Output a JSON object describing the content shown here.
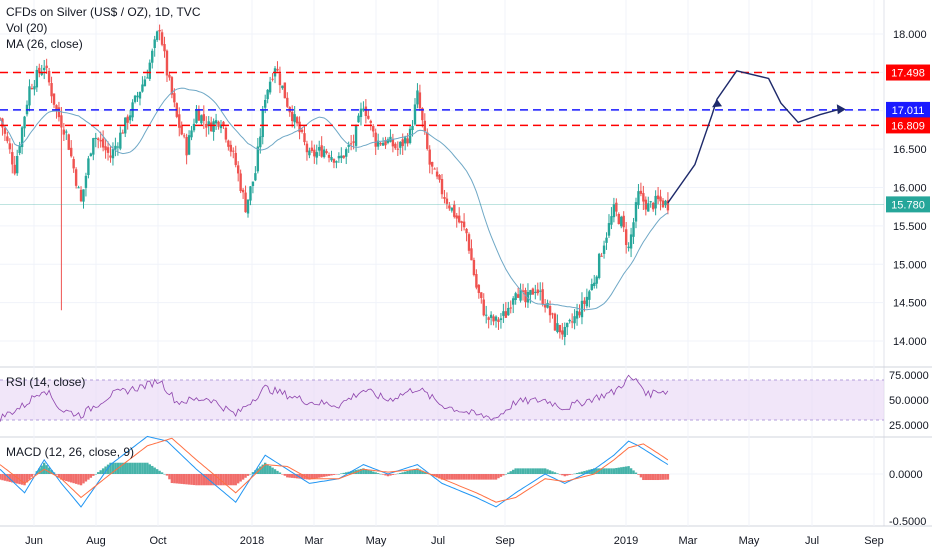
{
  "legend": {
    "main": "CFDs on Silver (US$ / OZ), 1D, TVC",
    "volume": "Vol (20)",
    "ma": "MA (26, close)",
    "rsi": "RSI (14, close)",
    "macd": "MACD (12, 26, close, 9)"
  },
  "colors": {
    "up": "#26a69a",
    "down": "#ef5350",
    "ma": "#6fa8c6",
    "rsi_line": "#8e44ad",
    "rsi_band": "#e8d5f5",
    "macd_line": "#2196f3",
    "signal_line": "#ff7043",
    "resistance": "#ff0000",
    "support_mid": "#1a1aff",
    "projection": "#1e2a6b",
    "current_price": "#26a69a"
  },
  "chart_data": [
    {
      "type": "candlestick",
      "title": "CFDs on Silver (US$ / OZ), 1D, TVC",
      "x_ticks": [
        "Jun",
        "Aug",
        "Oct",
        "2018",
        "Mar",
        "May",
        "Jul",
        "Sep",
        "2019",
        "Mar",
        "May",
        "Jul",
        "Sep"
      ],
      "y_ticks": [
        "18.000",
        "17.500",
        "17.000",
        "16.500",
        "16.000",
        "15.500",
        "15.000",
        "14.500",
        "14.000"
      ],
      "ylim": [
        13.7,
        18.3
      ],
      "price_labels": [
        {
          "label": "17.498",
          "value": 17.498,
          "style": "resistance"
        },
        {
          "label": "17.011",
          "value": 17.011,
          "style": "support_mid"
        },
        {
          "label": "16.809",
          "value": 16.809,
          "style": "resistance"
        },
        {
          "label": "15.780",
          "value": 15.78,
          "style": "current_price"
        }
      ],
      "close_path": [
        [
          0,
          16.9
        ],
        [
          6,
          16.25
        ],
        [
          12,
          17.3
        ],
        [
          18,
          17.6
        ],
        [
          23,
          17.0
        ],
        [
          27,
          16.7
        ],
        [
          33,
          15.8
        ],
        [
          38,
          16.7
        ],
        [
          45,
          16.4
        ],
        [
          52,
          16.9
        ],
        [
          60,
          17.5
        ],
        [
          65,
          18.1
        ],
        [
          68,
          17.5
        ],
        [
          72,
          16.9
        ],
        [
          76,
          16.5
        ],
        [
          80,
          17.0
        ],
        [
          85,
          16.8
        ],
        [
          90,
          16.9
        ],
        [
          96,
          16.3
        ],
        [
          100,
          15.75
        ],
        [
          104,
          16.2
        ],
        [
          108,
          17.2
        ],
        [
          112,
          17.6
        ],
        [
          117,
          17.1
        ],
        [
          121,
          16.8
        ],
        [
          126,
          16.4
        ],
        [
          132,
          16.5
        ],
        [
          138,
          16.35
        ],
        [
          144,
          16.6
        ],
        [
          148,
          17.1
        ],
        [
          153,
          16.6
        ],
        [
          158,
          16.6
        ],
        [
          162,
          16.5
        ],
        [
          167,
          16.7
        ],
        [
          170,
          17.2
        ],
        [
          175,
          16.3
        ],
        [
          180,
          15.95
        ],
        [
          186,
          15.6
        ],
        [
          190,
          15.4
        ],
        [
          194,
          14.7
        ],
        [
          198,
          14.3
        ],
        [
          202,
          14.25
        ],
        [
          206,
          14.35
        ],
        [
          210,
          14.7
        ],
        [
          214,
          14.5
        ],
        [
          218,
          14.7
        ],
        [
          222,
          14.5
        ],
        [
          226,
          14.2
        ],
        [
          230,
          14.1
        ],
        [
          234,
          14.3
        ],
        [
          238,
          14.5
        ],
        [
          242,
          14.8
        ],
        [
          246,
          15.3
        ],
        [
          250,
          15.7
        ],
        [
          253,
          15.55
        ],
        [
          256,
          15.2
        ],
        [
          260,
          15.9
        ],
        [
          264,
          15.75
        ],
        [
          268,
          15.82
        ],
        [
          272,
          15.78
        ]
      ],
      "spike_low": {
        "t": 25,
        "value": 14.4
      },
      "resistance_levels": [
        17.498,
        16.809
      ],
      "mid_level": 17.011,
      "current_price": 15.78,
      "projection_path": [
        [
          272,
          15.8
        ],
        [
          283,
          16.3
        ],
        [
          290,
          16.95
        ],
        [
          292,
          17.15
        ],
        [
          300,
          17.52
        ],
        [
          313,
          17.42
        ],
        [
          318,
          17.1
        ],
        [
          325,
          16.85
        ],
        [
          334,
          16.95
        ],
        [
          342,
          17.02
        ]
      ]
    },
    {
      "type": "line",
      "title": "RSI (14, close)",
      "y_ticks": [
        "75.0000",
        "50.0000",
        "25.0000"
      ],
      "ylim": [
        20,
        80
      ],
      "band": [
        30,
        70
      ],
      "values_path": [
        [
          0,
          32
        ],
        [
          10,
          45
        ],
        [
          18,
          62
        ],
        [
          25,
          40
        ],
        [
          33,
          35
        ],
        [
          45,
          55
        ],
        [
          60,
          65
        ],
        [
          65,
          70
        ],
        [
          72,
          48
        ],
        [
          85,
          52
        ],
        [
          96,
          35
        ],
        [
          108,
          62
        ],
        [
          117,
          55
        ],
        [
          126,
          48
        ],
        [
          138,
          45
        ],
        [
          148,
          60
        ],
        [
          158,
          50
        ],
        [
          170,
          62
        ],
        [
          180,
          45
        ],
        [
          194,
          35
        ],
        [
          202,
          32
        ],
        [
          210,
          48
        ],
        [
          222,
          50
        ],
        [
          230,
          42
        ],
        [
          242,
          52
        ],
        [
          250,
          58
        ],
        [
          256,
          72
        ],
        [
          260,
          68
        ],
        [
          264,
          55
        ],
        [
          268,
          60
        ],
        [
          272,
          58
        ]
      ]
    },
    {
      "type": "bar+line",
      "title": "MACD (12, 26, close, 9)",
      "y_ticks": [
        "0.0000",
        "-0.5000"
      ],
      "ylim": [
        -0.6,
        0.45
      ],
      "macd_path": [
        [
          0,
          0.05
        ],
        [
          10,
          -0.2
        ],
        [
          18,
          0.15
        ],
        [
          25,
          -0.1
        ],
        [
          33,
          -0.35
        ],
        [
          45,
          0.1
        ],
        [
          60,
          0.4
        ],
        [
          68,
          0.35
        ],
        [
          80,
          0.05
        ],
        [
          96,
          -0.3
        ],
        [
          108,
          0.2
        ],
        [
          117,
          0.05
        ],
        [
          126,
          -0.1
        ],
        [
          138,
          -0.05
        ],
        [
          148,
          0.1
        ],
        [
          158,
          0.0
        ],
        [
          170,
          0.1
        ],
        [
          180,
          -0.1
        ],
        [
          194,
          -0.25
        ],
        [
          202,
          -0.35
        ],
        [
          210,
          -0.2
        ],
        [
          222,
          0.0
        ],
        [
          230,
          -0.1
        ],
        [
          242,
          0.05
        ],
        [
          250,
          0.2
        ],
        [
          256,
          0.35
        ],
        [
          260,
          0.3
        ],
        [
          266,
          0.2
        ],
        [
          272,
          0.1
        ]
      ],
      "signal_path": [
        [
          0,
          0.1
        ],
        [
          10,
          -0.1
        ],
        [
          18,
          0.05
        ],
        [
          25,
          -0.05
        ],
        [
          33,
          -0.25
        ],
        [
          45,
          0.0
        ],
        [
          60,
          0.3
        ],
        [
          70,
          0.38
        ],
        [
          80,
          0.15
        ],
        [
          96,
          -0.2
        ],
        [
          108,
          0.1
        ],
        [
          117,
          0.08
        ],
        [
          126,
          -0.05
        ],
        [
          138,
          -0.05
        ],
        [
          148,
          0.05
        ],
        [
          158,
          0.02
        ],
        [
          170,
          0.05
        ],
        [
          180,
          -0.05
        ],
        [
          194,
          -0.2
        ],
        [
          202,
          -0.3
        ],
        [
          210,
          -0.25
        ],
        [
          222,
          -0.05
        ],
        [
          230,
          -0.08
        ],
        [
          242,
          0.0
        ],
        [
          250,
          0.15
        ],
        [
          256,
          0.28
        ],
        [
          262,
          0.32
        ],
        [
          268,
          0.22
        ],
        [
          272,
          0.15
        ]
      ]
    }
  ]
}
